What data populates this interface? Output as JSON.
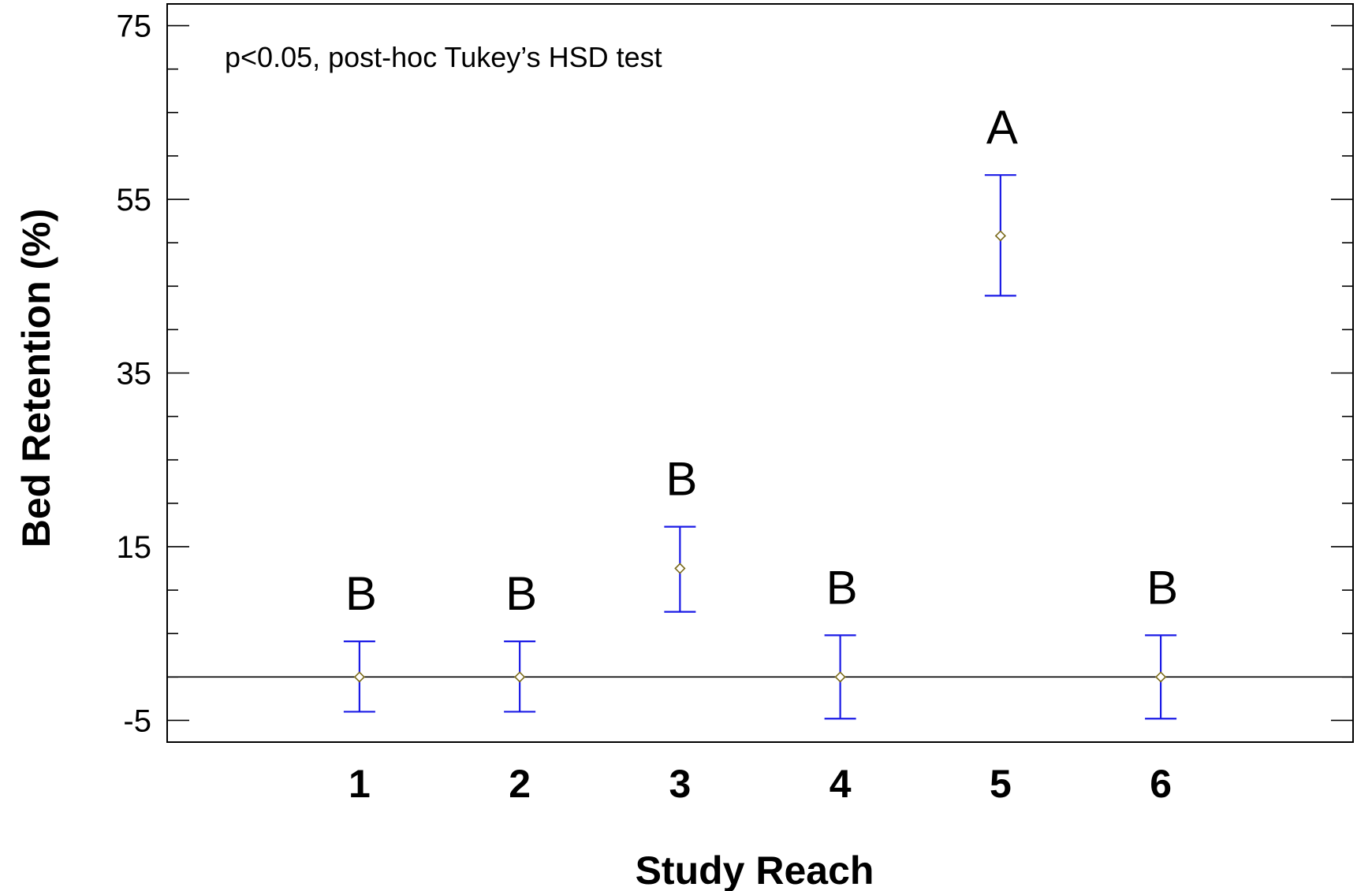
{
  "chart_data": {
    "type": "scatter",
    "title": "",
    "xlabel": "Study Reach",
    "ylabel": "Bed Retention (%)",
    "annotation": "p<0.05, post-hoc Tukey’s HSD test",
    "ylim": [
      -7.5,
      77.5
    ],
    "yticks": [
      -5,
      15,
      35,
      55,
      75
    ],
    "yticklabels": [
      "-5",
      "15",
      "35",
      "55",
      "75"
    ],
    "xlim": [
      -0.2,
      7.2
    ],
    "categories": [
      "1",
      "2",
      "3",
      "4",
      "5",
      "6"
    ],
    "reference_line": 0,
    "grid": false,
    "series": [
      {
        "x": [
          1,
          2,
          3,
          4,
          5,
          6
        ],
        "mean": [
          0,
          0,
          12.5,
          0,
          50.8,
          0
        ],
        "lower": [
          -4,
          -4,
          7.5,
          -4.8,
          43.9,
          -4.8
        ],
        "upper": [
          4.1,
          4.1,
          17.3,
          4.8,
          57.8,
          4.8
        ],
        "group_letters": [
          "B",
          "B",
          "B",
          "B",
          "A",
          "B"
        ]
      }
    ],
    "colors": {
      "errorbar": "#1a1ae6",
      "marker": "#7a6a1a",
      "axis": "#000000"
    }
  }
}
